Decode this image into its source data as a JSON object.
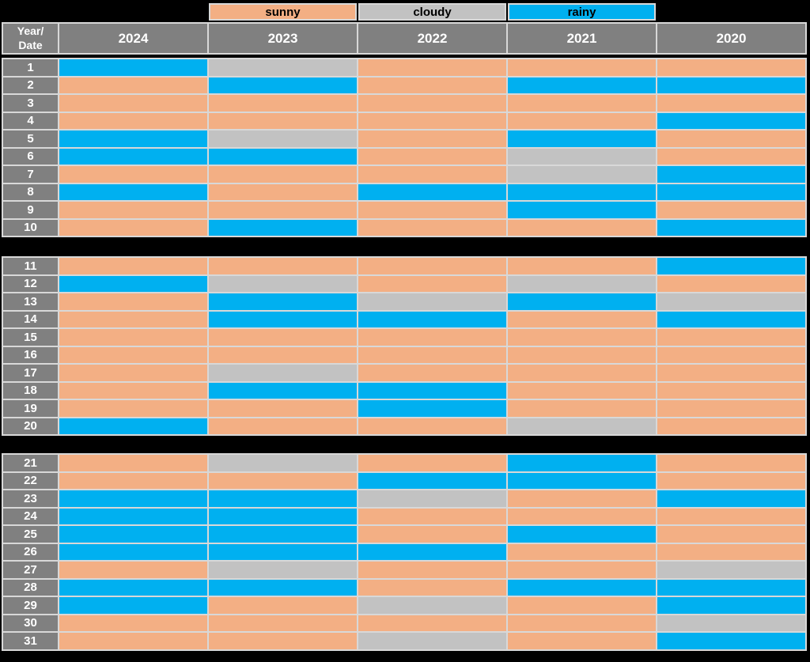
{
  "colors": {
    "sunny": "#F3AF84",
    "cloudy": "#C2C2C2",
    "rainy": "#00B0F0",
    "header_gray": "#808080",
    "grid_line": "#D8D8D8",
    "background": "#000000",
    "header_text": "#FFFFFF",
    "legend_text": "#000000"
  },
  "header": {
    "corner_line1": "Year/",
    "corner_line2": "Date"
  },
  "chart_data": {
    "type": "heatmap",
    "title": "",
    "row_header_title": "Year/Date",
    "legend_position": "top",
    "grid": true,
    "legend_categories": [
      {
        "label": "sunny",
        "color": "#F3AF84"
      },
      {
        "label": "cloudy",
        "color": "#C2C2C2"
      },
      {
        "label": "rainy",
        "color": "#00B0F0"
      }
    ],
    "columns": [
      "2024",
      "2023",
      "2022",
      "2021",
      "2020"
    ],
    "dates": [
      "1",
      "2",
      "3",
      "4",
      "5",
      "6",
      "7",
      "8",
      "9",
      "10",
      "11",
      "12",
      "13",
      "14",
      "15",
      "16",
      "17",
      "18",
      "19",
      "20",
      "21",
      "22",
      "23",
      "24",
      "25",
      "26",
      "27",
      "28",
      "29",
      "30",
      "31"
    ],
    "row_groups": [
      [
        1,
        10
      ],
      [
        11,
        20
      ],
      [
        21,
        31
      ]
    ],
    "matrix": [
      [
        "rainy",
        "cloudy",
        "sunny",
        "sunny",
        "sunny"
      ],
      [
        "sunny",
        "rainy",
        "sunny",
        "rainy",
        "rainy"
      ],
      [
        "sunny",
        "sunny",
        "sunny",
        "sunny",
        "sunny"
      ],
      [
        "sunny",
        "sunny",
        "sunny",
        "sunny",
        "rainy"
      ],
      [
        "rainy",
        "cloudy",
        "sunny",
        "rainy",
        "sunny"
      ],
      [
        "rainy",
        "rainy",
        "sunny",
        "cloudy",
        "sunny"
      ],
      [
        "sunny",
        "sunny",
        "sunny",
        "cloudy",
        "rainy"
      ],
      [
        "rainy",
        "sunny",
        "rainy",
        "rainy",
        "rainy"
      ],
      [
        "sunny",
        "sunny",
        "sunny",
        "rainy",
        "sunny"
      ],
      [
        "sunny",
        "rainy",
        "sunny",
        "sunny",
        "rainy"
      ],
      [
        "sunny",
        "sunny",
        "sunny",
        "sunny",
        "rainy"
      ],
      [
        "rainy",
        "cloudy",
        "sunny",
        "cloudy",
        "sunny"
      ],
      [
        "sunny",
        "rainy",
        "cloudy",
        "rainy",
        "cloudy"
      ],
      [
        "sunny",
        "rainy",
        "rainy",
        "sunny",
        "rainy"
      ],
      [
        "sunny",
        "sunny",
        "sunny",
        "sunny",
        "sunny"
      ],
      [
        "sunny",
        "sunny",
        "sunny",
        "sunny",
        "sunny"
      ],
      [
        "sunny",
        "cloudy",
        "sunny",
        "sunny",
        "sunny"
      ],
      [
        "sunny",
        "rainy",
        "rainy",
        "sunny",
        "sunny"
      ],
      [
        "sunny",
        "sunny",
        "rainy",
        "sunny",
        "sunny"
      ],
      [
        "rainy",
        "sunny",
        "sunny",
        "cloudy",
        "sunny"
      ],
      [
        "sunny",
        "cloudy",
        "sunny",
        "rainy",
        "sunny"
      ],
      [
        "sunny",
        "sunny",
        "rainy",
        "rainy",
        "sunny"
      ],
      [
        "rainy",
        "rainy",
        "cloudy",
        "sunny",
        "rainy"
      ],
      [
        "rainy",
        "rainy",
        "sunny",
        "sunny",
        "sunny"
      ],
      [
        "rainy",
        "rainy",
        "sunny",
        "rainy",
        "sunny"
      ],
      [
        "rainy",
        "rainy",
        "rainy",
        "sunny",
        "sunny"
      ],
      [
        "sunny",
        "cloudy",
        "sunny",
        "sunny",
        "cloudy"
      ],
      [
        "rainy",
        "rainy",
        "sunny",
        "rainy",
        "rainy"
      ],
      [
        "rainy",
        "sunny",
        "cloudy",
        "sunny",
        "rainy"
      ],
      [
        "sunny",
        "sunny",
        "sunny",
        "sunny",
        "cloudy"
      ],
      [
        "sunny",
        "sunny",
        "cloudy",
        "sunny",
        "rainy"
      ]
    ]
  }
}
